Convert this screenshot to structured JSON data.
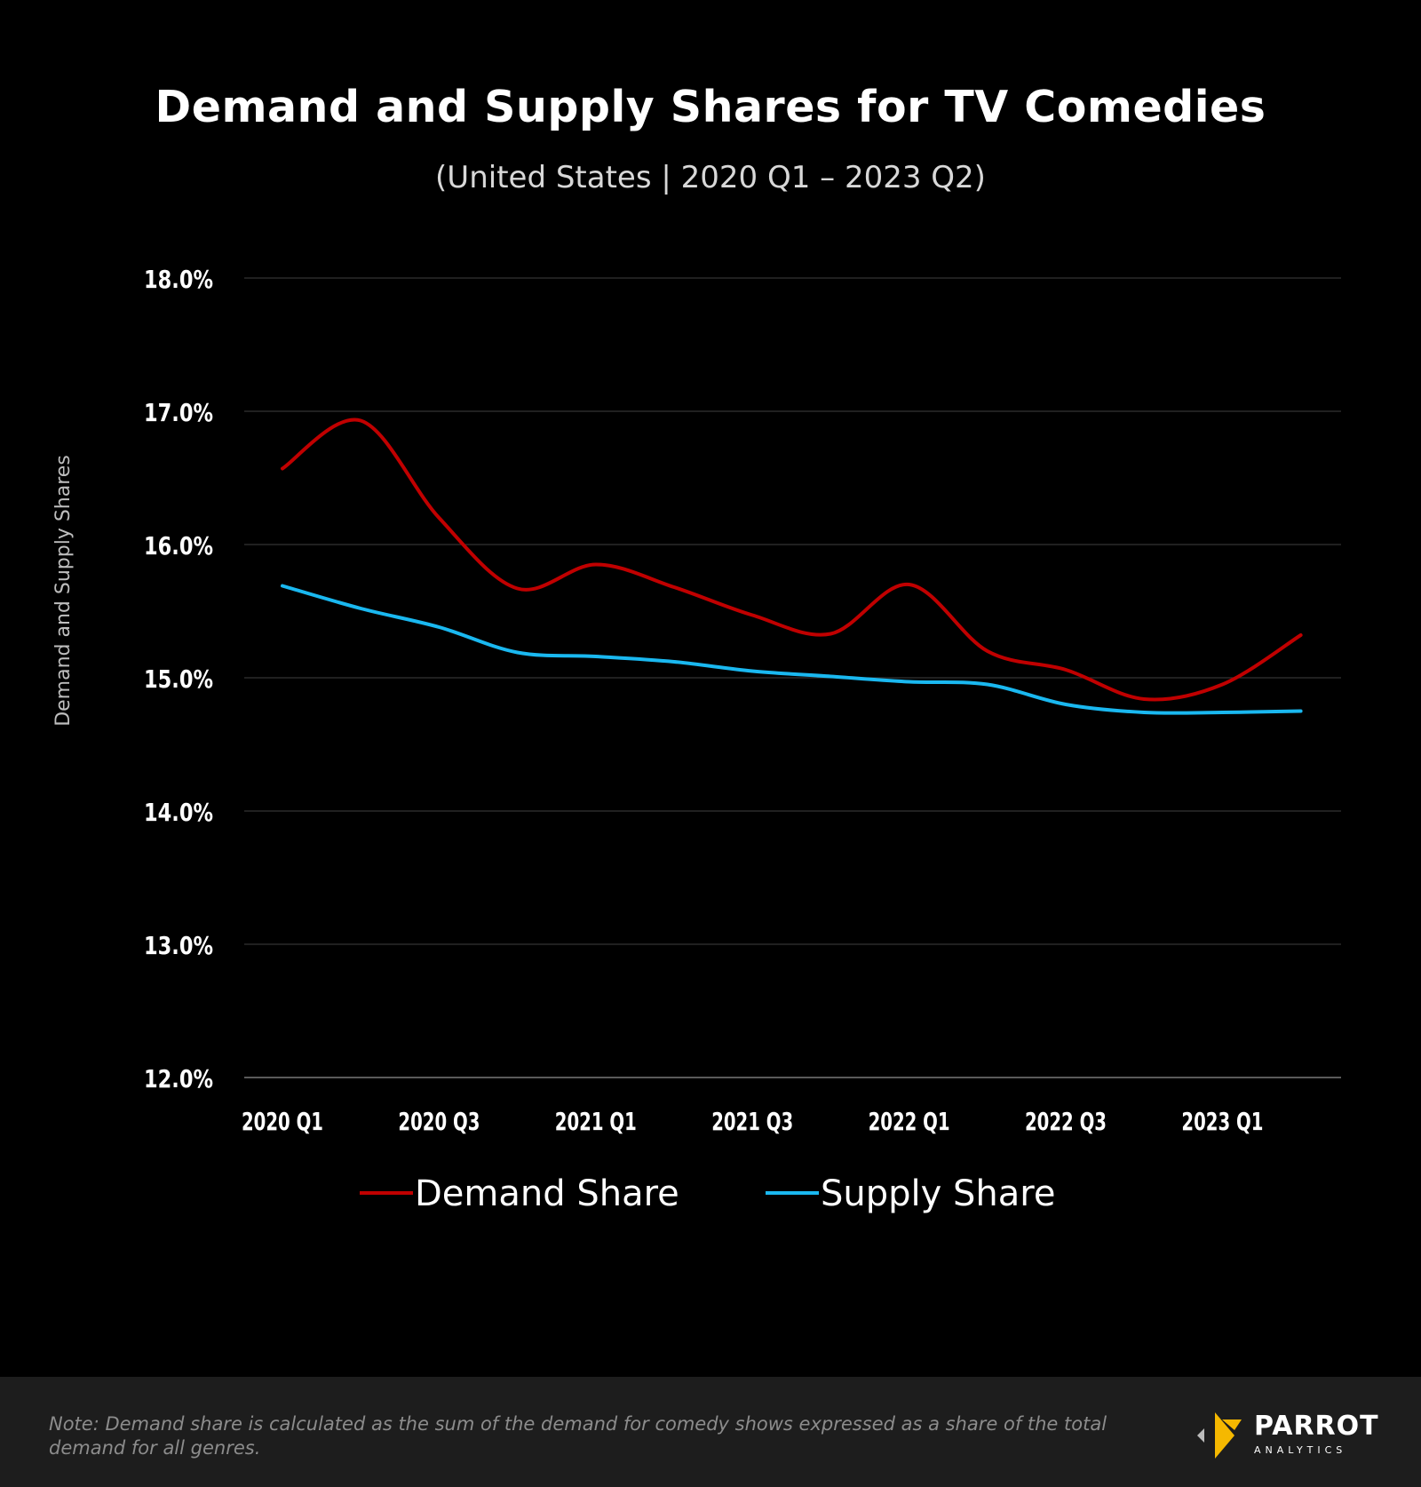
{
  "title": "Demand and Supply Shares for TV Comedies",
  "subtitle": "(United States  |  2020 Q1 – 2023 Q2)",
  "colors": {
    "background": "#000000",
    "demand": "#c00000",
    "supply": "#1ab8f0",
    "gridline": "#333333",
    "footer": "#1d1d1d",
    "logo_accent": "#f5b800"
  },
  "chart_data": {
    "type": "line",
    "ylabel": "Demand and Supply Shares",
    "xlabel": "",
    "ylim": [
      12.0,
      18.0
    ],
    "yticks": [
      "12.0%",
      "13.0%",
      "14.0%",
      "15.0%",
      "16.0%",
      "17.0%",
      "18.0%"
    ],
    "categories": [
      "2020 Q1",
      "2020 Q2",
      "2020 Q3",
      "2020 Q4",
      "2021 Q1",
      "2021 Q2",
      "2021 Q3",
      "2021 Q4",
      "2022 Q1",
      "2022 Q2",
      "2022 Q3",
      "2022 Q4",
      "2023 Q1",
      "2023 Q2"
    ],
    "xtick_labels": [
      "2020 Q1",
      "2020 Q3",
      "2021 Q1",
      "2021 Q3",
      "2022 Q1",
      "2022 Q3",
      "2023 Q1"
    ],
    "series": [
      {
        "name": "Demand Share",
        "color": "#c00000",
        "values": [
          16.57,
          16.93,
          16.2,
          15.67,
          15.85,
          15.68,
          15.47,
          15.33,
          15.7,
          15.2,
          15.06,
          14.84,
          14.95,
          15.32
        ]
      },
      {
        "name": "Supply Share",
        "color": "#1ab8f0",
        "values": [
          15.69,
          15.52,
          15.38,
          15.19,
          15.16,
          15.12,
          15.05,
          15.01,
          14.97,
          14.95,
          14.8,
          14.74,
          14.74,
          14.75
        ]
      }
    ],
    "legend": "bottom-center",
    "grid": true
  },
  "footer": {
    "note": "Note: Demand share is calculated as the sum of the demand for comedy shows expressed as a share of the total demand for all genres.",
    "logo_name": "PARROT",
    "logo_sub": "ANALYTICS"
  }
}
